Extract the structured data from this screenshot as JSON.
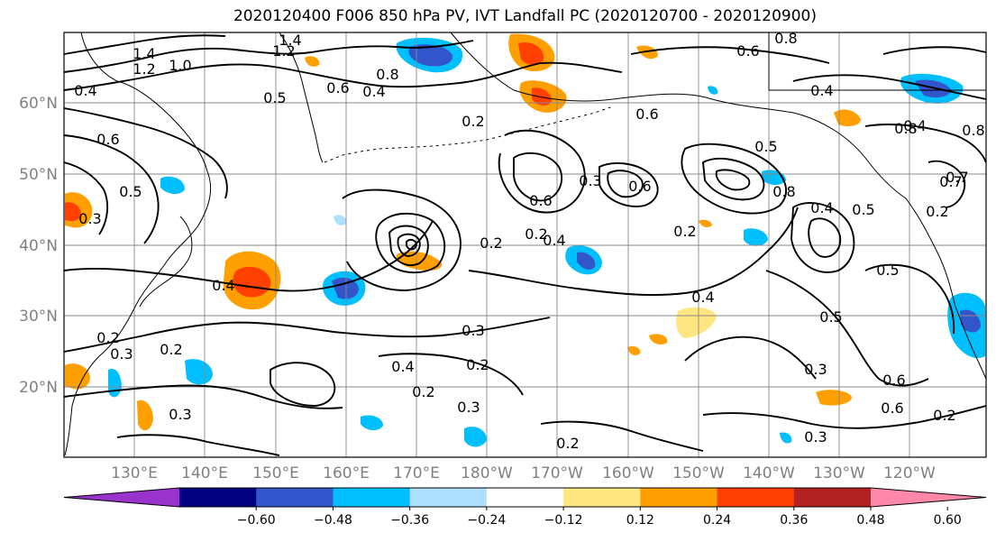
{
  "title": "2020120400 F006 850 hPa PV, IVT Landfall PC (2020120700 - 2020120900)",
  "map": {
    "lat_ticks": [
      "60°N",
      "50°N",
      "40°N",
      "30°N",
      "20°N"
    ],
    "lon_ticks": [
      "130°E",
      "140°E",
      "150°E",
      "160°E",
      "170°E",
      "180°W",
      "170°W",
      "160°W",
      "150°W",
      "140°W",
      "130°W",
      "120°W"
    ],
    "lon_range": [
      121,
      252
    ],
    "lat_range": [
      10,
      70
    ]
  },
  "colorbar": {
    "colors": [
      "#9933cc",
      "#000080",
      "#3355cc",
      "#00bfff",
      "#b0e0ff",
      "#ffffff",
      "#ffe680",
      "#ffa000",
      "#ff4000",
      "#b22222",
      "#ff88aa"
    ],
    "tick_labels": [
      "−0.60",
      "−0.48",
      "−0.36",
      "−0.24",
      "−0.12",
      "0.12",
      "0.24",
      "0.36",
      "0.48",
      "0.60"
    ]
  },
  "contour_labels": [
    "1.4",
    "1.2",
    "1.0",
    "1.4",
    "1.2",
    "0.4",
    "0.5",
    "0.6",
    "0.4",
    "0.8",
    "0.2",
    "0.6",
    "0.4",
    "0.8",
    "0.8",
    "0.6",
    "0.6",
    "0.4",
    "0.2",
    "0.2",
    "0.3",
    "0.2",
    "0.4",
    "0.2",
    "0.3",
    "0.2",
    "0.3",
    "0.2",
    "0.3",
    "0.2",
    "0.4",
    "0.3",
    "0.6",
    "0.5",
    "0.4",
    "0.6",
    "0.2",
    "0.5",
    "0.3",
    "0.4",
    "0.5",
    "0.5",
    "0.6",
    "0.3",
    "0.6",
    "0.2",
    "0.2",
    "0.5",
    "0.4",
    "0.8",
    "0.7",
    "0.7",
    "0.8",
    "0.3"
  ]
}
